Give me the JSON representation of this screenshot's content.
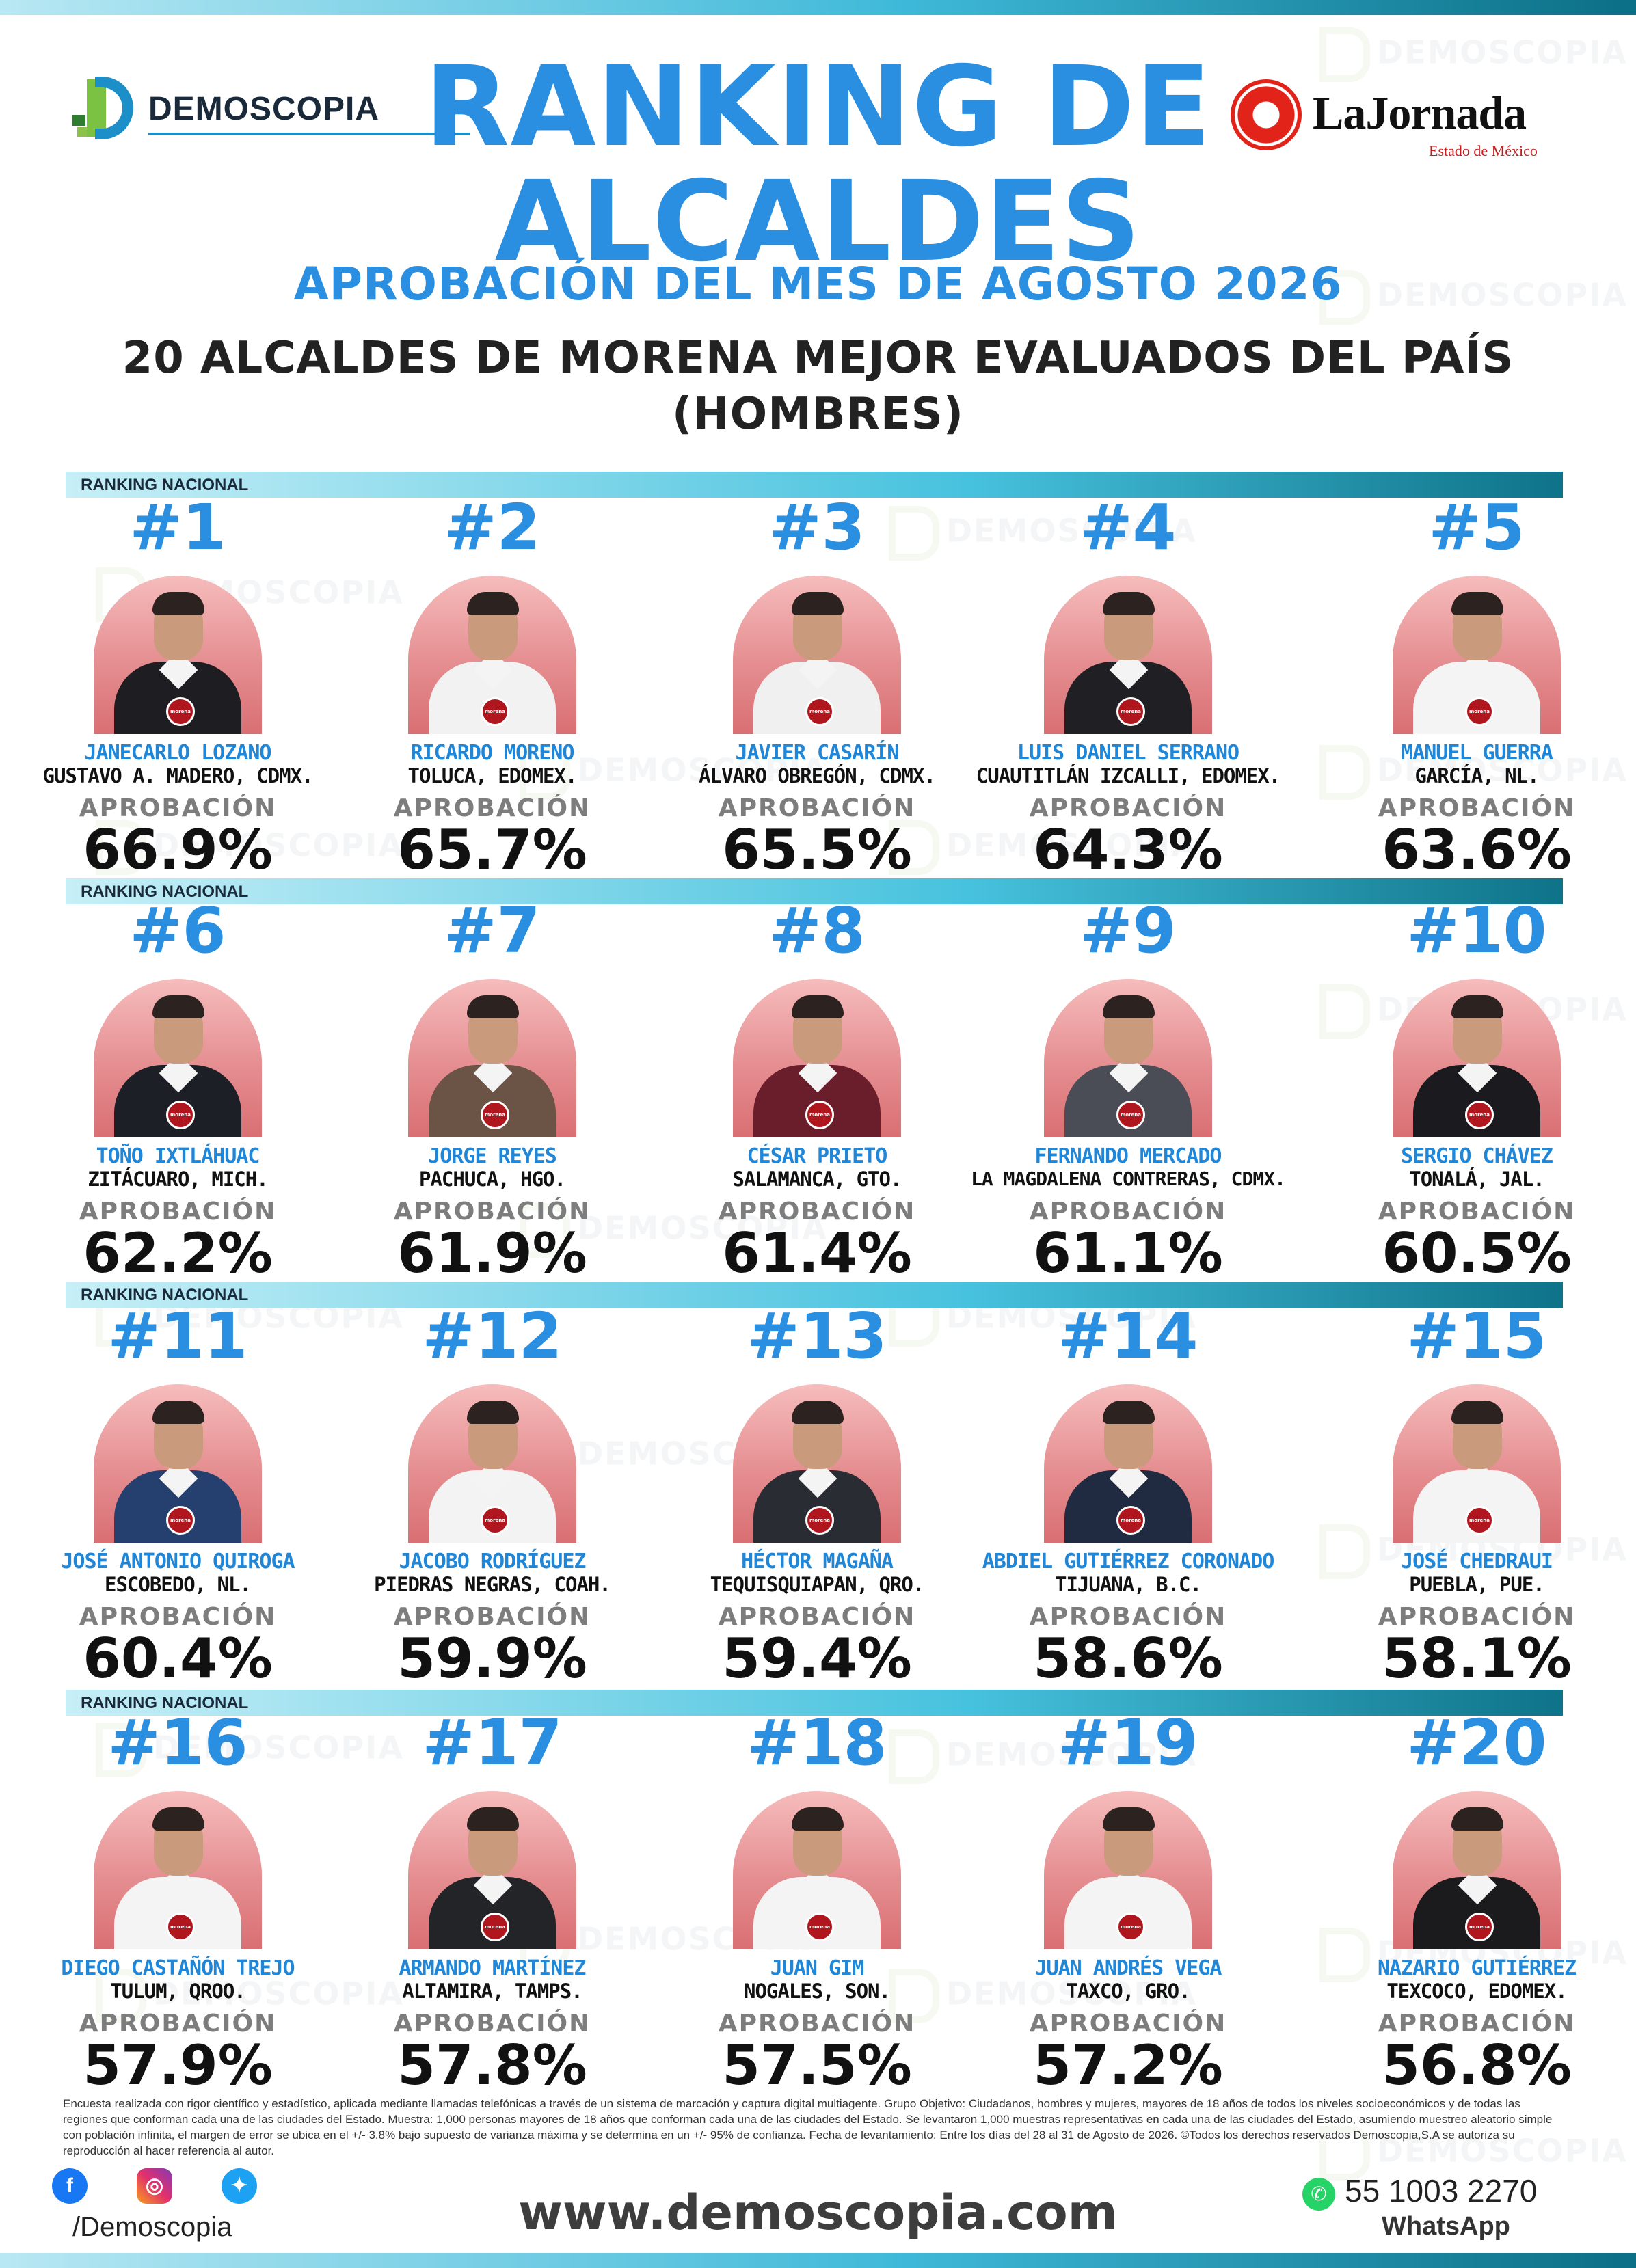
{
  "header": {
    "brand_left": "DEMOSCOPIA",
    "brand_right": "LaJornada",
    "brand_right_sub": "Estado de México",
    "title_line1": "RANKING DE",
    "title_line2": "ALCALDES",
    "subtitle": "APROBACIÓN DEL MES DE AGOSTO 2026",
    "heading_line1": "20 ALCALDES DE MORENA MEJOR EVALUADOS DEL PAÍS",
    "heading_line2": "(HOMBRES)"
  },
  "watermark": "DEMOSCOPIA",
  "section_label": "RANKING NACIONAL",
  "approval_label": "APROBACIÓN",
  "pin_text": "morena",
  "colors": {
    "accent": "#2a8fe0",
    "photo_bg": "#e58e91",
    "party_red": "#b0161e"
  },
  "alcaldes": [
    {
      "rank": "#1",
      "name": "JANECARLO LOZANO",
      "city": "GUSTAVO A. MADERO, CDMX.",
      "approval": "66.9%",
      "suit": "#1d1d22"
    },
    {
      "rank": "#2",
      "name": "RICARDO MORENO",
      "city": "TOLUCA, EDOMEX.",
      "approval": "65.7%",
      "suit": "#f2f2f2"
    },
    {
      "rank": "#3",
      "name": "JAVIER CASARÍN",
      "city": "ÁLVARO OBREGÓN, CDMX.",
      "approval": "65.5%",
      "suit": "#f0f0f0"
    },
    {
      "rank": "#4",
      "name": "LUIS DANIEL SERRANO",
      "city": "CUAUTITLÁN IZCALLI, EDOMEX.",
      "approval": "64.3%",
      "suit": "#202024"
    },
    {
      "rank": "#5",
      "name": "MANUEL GUERRA",
      "city": "GARCÍA, NL.",
      "approval": "63.6%",
      "suit": "#f4f4f4"
    },
    {
      "rank": "#6",
      "name": "TOÑO IXTLÁHUAC",
      "city": "ZITÁCUARO, MICH.",
      "approval": "62.2%",
      "suit": "#1d1f26"
    },
    {
      "rank": "#7",
      "name": "JORGE REYES",
      "city": "PACHUCA, HGO.",
      "approval": "61.9%",
      "suit": "#6b5446"
    },
    {
      "rank": "#8",
      "name": "CÉSAR PRIETO",
      "city": "SALAMANCA, GTO.",
      "approval": "61.4%",
      "suit": "#6a1e2c"
    },
    {
      "rank": "#9",
      "name": "FERNANDO MERCADO",
      "city": "LA MAGDALENA CONTRERAS, CDMX.",
      "approval": "61.1%",
      "suit": "#4a4d55"
    },
    {
      "rank": "#10",
      "name": "SERGIO CHÁVEZ",
      "city": "TONALÁ, JAL.",
      "approval": "60.5%",
      "suit": "#1b1b1f"
    },
    {
      "rank": "#11",
      "name": "JOSÉ ANTONIO QUIROGA",
      "city": "ESCOBEDO, NL.",
      "approval": "60.4%",
      "suit": "#25406e"
    },
    {
      "rank": "#12",
      "name": "JACOBO RODRÍGUEZ",
      "city": "PIEDRAS NEGRAS, COAH.",
      "approval": "59.9%",
      "suit": "#f3f3f3"
    },
    {
      "rank": "#13",
      "name": "HÉCTOR MAGAÑA",
      "city": "TEQUISQUIAPAN, QRO.",
      "approval": "59.4%",
      "suit": "#2a2c33"
    },
    {
      "rank": "#14",
      "name": "ABDIEL GUTIÉRREZ CORONADO",
      "city": "TIJUANA, B.C.",
      "approval": "58.6%",
      "suit": "#202a40"
    },
    {
      "rank": "#15",
      "name": "JOSÉ CHEDRAUI",
      "city": "PUEBLA, PUE.",
      "approval": "58.1%",
      "suit": "#f4f4f4"
    },
    {
      "rank": "#16",
      "name": "DIEGO CASTAÑÓN TREJO",
      "city": "TULUM, QROO.",
      "approval": "57.9%",
      "suit": "#f4f4f4"
    },
    {
      "rank": "#17",
      "name": "ARMANDO MARTÍNEZ",
      "city": "ALTAMIRA, TAMPS.",
      "approval": "57.8%",
      "suit": "#222428"
    },
    {
      "rank": "#18",
      "name": "JUAN GIM",
      "city": "NOGALES, SON.",
      "approval": "57.5%",
      "suit": "#f4f4f4"
    },
    {
      "rank": "#19",
      "name": "JUAN ANDRÉS VEGA",
      "city": "TAXCO, GRO.",
      "approval": "57.2%",
      "suit": "#f4f4f4"
    },
    {
      "rank": "#20",
      "name": "NAZARIO GUTIÉRREZ",
      "city": "TEXCOCO, EDOMEX.",
      "approval": "56.8%",
      "suit": "#1b1b1e"
    }
  ],
  "footer": {
    "methodology": "Encuesta realizada con rigor científico y estadístico, aplicada mediante llamadas telefónicas a través de un sistema de marcación y captura digital multiagente. Grupo Objetivo: Ciudadanos, hombres y mujeres, mayores de 18 años de todos los niveles socioeconómicos y de todas las regiones que conforman cada una de las ciudades del Estado. Muestra: 1,000 personas mayores de 18 años que conforman cada una de las ciudades del Estado. Se levantaron 1,000 muestras representativas en cada una de las ciudades del Estado, asumiendo muestreo aleatorio simple con población infinita, el margen de error se ubica en el +/- 3.8% bajo supuesto de varianza máxima y se determina en un +/- 95% de confianza. Fecha de levantamiento: Entre los días del 28 al 31 de Agosto de 2026. ©Todos los derechos reservados Demoscopia,S.A se autoriza su reproducción al hacer referencia al autor.",
    "social_handle": "/Demoscopia",
    "website": "www.demoscopia.com",
    "whatsapp_number": "55 1003 2270",
    "whatsapp_label": "WhatsApp",
    "social_icons": [
      "facebook-icon",
      "instagram-icon",
      "twitter-icon"
    ]
  }
}
